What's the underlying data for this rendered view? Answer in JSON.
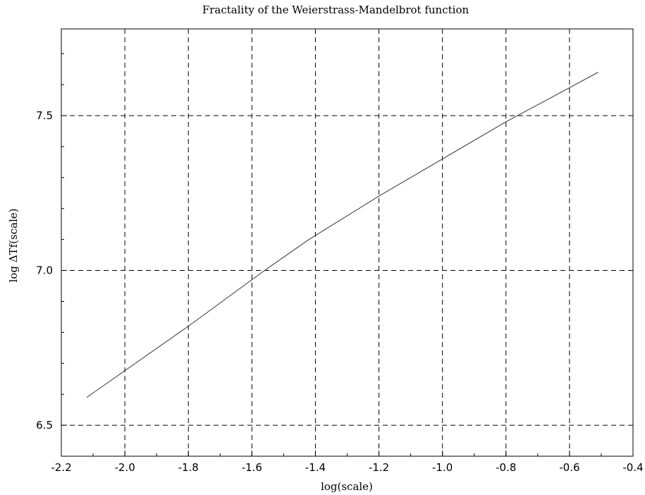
{
  "chart_data": {
    "type": "line",
    "title": "Fractality of the Weierstrass-Mandelbrot function",
    "xlabel": "log(scale)",
    "ylabel": "log ΔTf(scale)",
    "xlim": [
      -2.2,
      -0.4
    ],
    "ylim": [
      6.4,
      7.78
    ],
    "x_ticks": [
      -2.2,
      -2.0,
      -1.8,
      -1.6,
      -1.4,
      -1.2,
      -1.0,
      -0.8,
      -0.6,
      -0.4
    ],
    "x_tick_labels": [
      "-2.2",
      "-2.0",
      "-1.8",
      "-1.6",
      "-1.4",
      "-1.2",
      "-1.0",
      "-0.8",
      "-0.6",
      "-0.4"
    ],
    "y_ticks": [
      6.5,
      7.0,
      7.5
    ],
    "y_tick_labels": [
      "6.5",
      "7.0",
      "7.5"
    ],
    "x_grid": [
      -2.0,
      -1.8,
      -1.6,
      -1.4,
      -1.2,
      -1.0,
      -0.8,
      -0.6
    ],
    "y_grid": [
      6.5,
      7.0,
      7.5
    ],
    "grid": true,
    "series": [
      {
        "x": [
          -2.12,
          -1.8,
          -1.56,
          -1.42,
          -1.2,
          -1.0,
          -0.8,
          -0.6,
          -0.51
        ],
        "y": [
          6.59,
          6.82,
          7.0,
          7.1,
          7.24,
          7.36,
          7.48,
          7.59,
          7.64
        ],
        "color": "#333333"
      }
    ]
  }
}
